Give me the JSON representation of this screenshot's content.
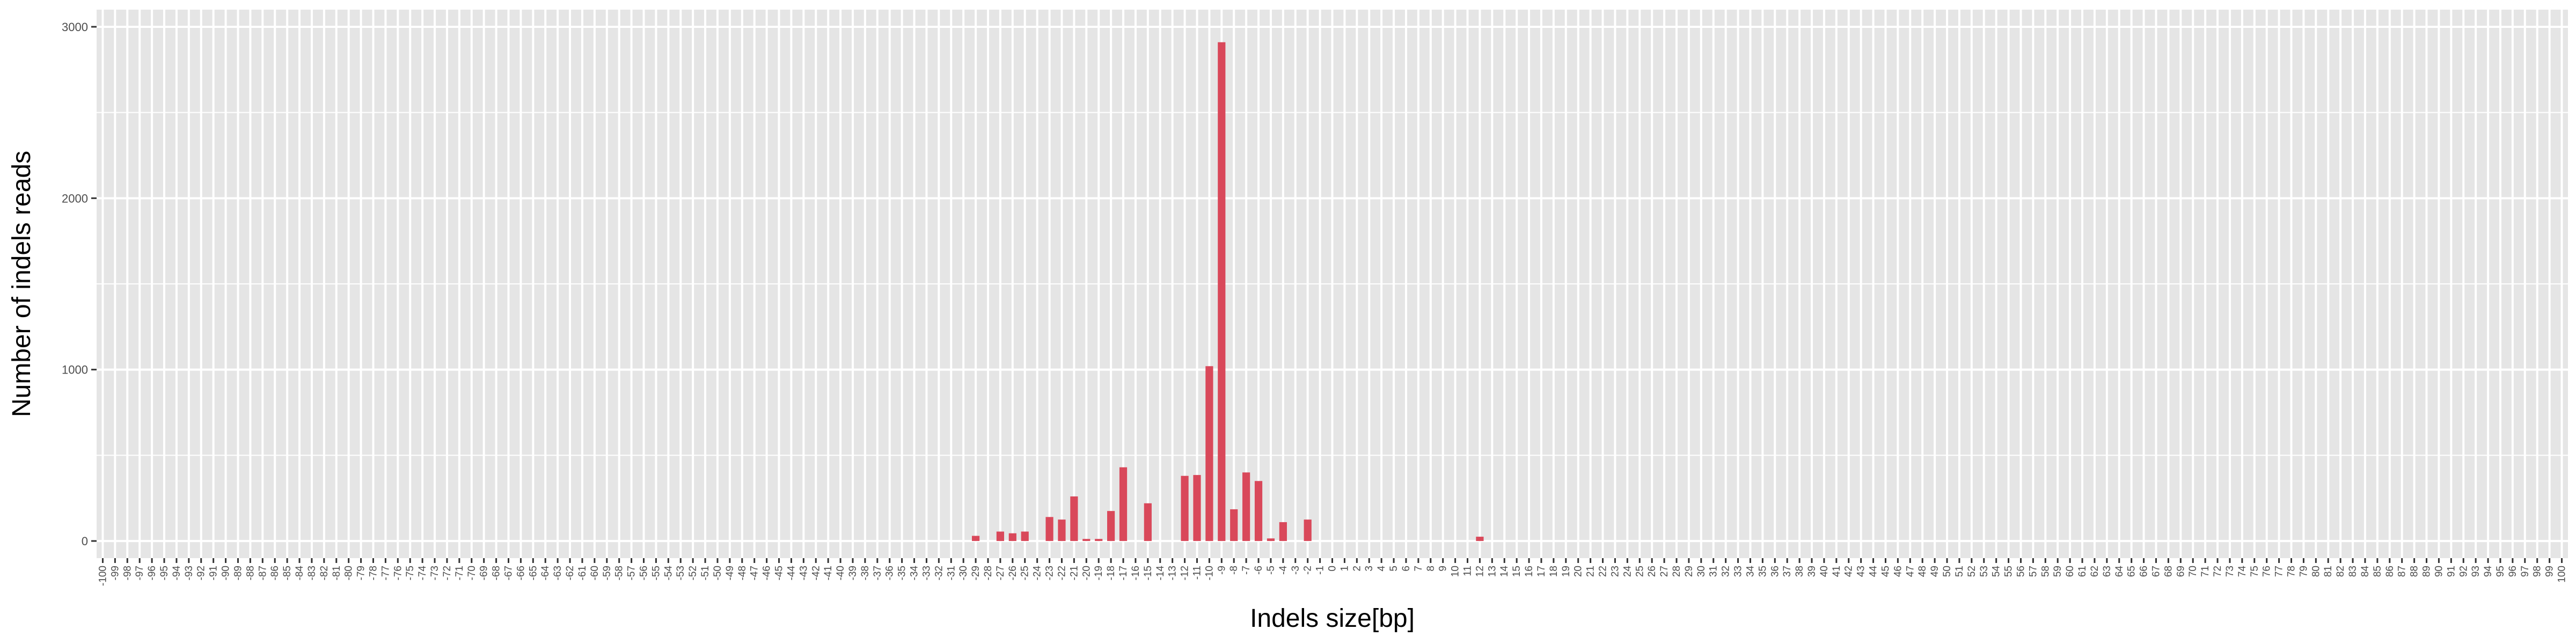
{
  "chart_data": {
    "type": "bar",
    "title": "",
    "xlabel": "Indels size[bp]",
    "ylabel": "Number of indels reads",
    "x_range": [
      -100,
      100
    ],
    "ylim": [
      -100,
      3100
    ],
    "yticks": [
      0,
      1000,
      2000,
      3000
    ],
    "grid": true,
    "legend": "none",
    "bar_color": "#d9485a",
    "panel_color": "#e5e5e5",
    "grid_color": "#ffffff",
    "bars": [
      {
        "x": -29,
        "y": 30
      },
      {
        "x": -27,
        "y": 55
      },
      {
        "x": -26,
        "y": 45
      },
      {
        "x": -25,
        "y": 55
      },
      {
        "x": -23,
        "y": 140
      },
      {
        "x": -22,
        "y": 125
      },
      {
        "x": -21,
        "y": 260
      },
      {
        "x": -20,
        "y": 12
      },
      {
        "x": -19,
        "y": 12
      },
      {
        "x": -18,
        "y": 175
      },
      {
        "x": -17,
        "y": 430
      },
      {
        "x": -15,
        "y": 220
      },
      {
        "x": -12,
        "y": 380
      },
      {
        "x": -11,
        "y": 385
      },
      {
        "x": -10,
        "y": 1020
      },
      {
        "x": -9,
        "y": 2910
      },
      {
        "x": -8,
        "y": 185
      },
      {
        "x": -7,
        "y": 400
      },
      {
        "x": -6,
        "y": 350
      },
      {
        "x": -5,
        "y": 15
      },
      {
        "x": -4,
        "y": 110
      },
      {
        "x": -2,
        "y": 125
      },
      {
        "x": 12,
        "y": 25
      }
    ]
  }
}
